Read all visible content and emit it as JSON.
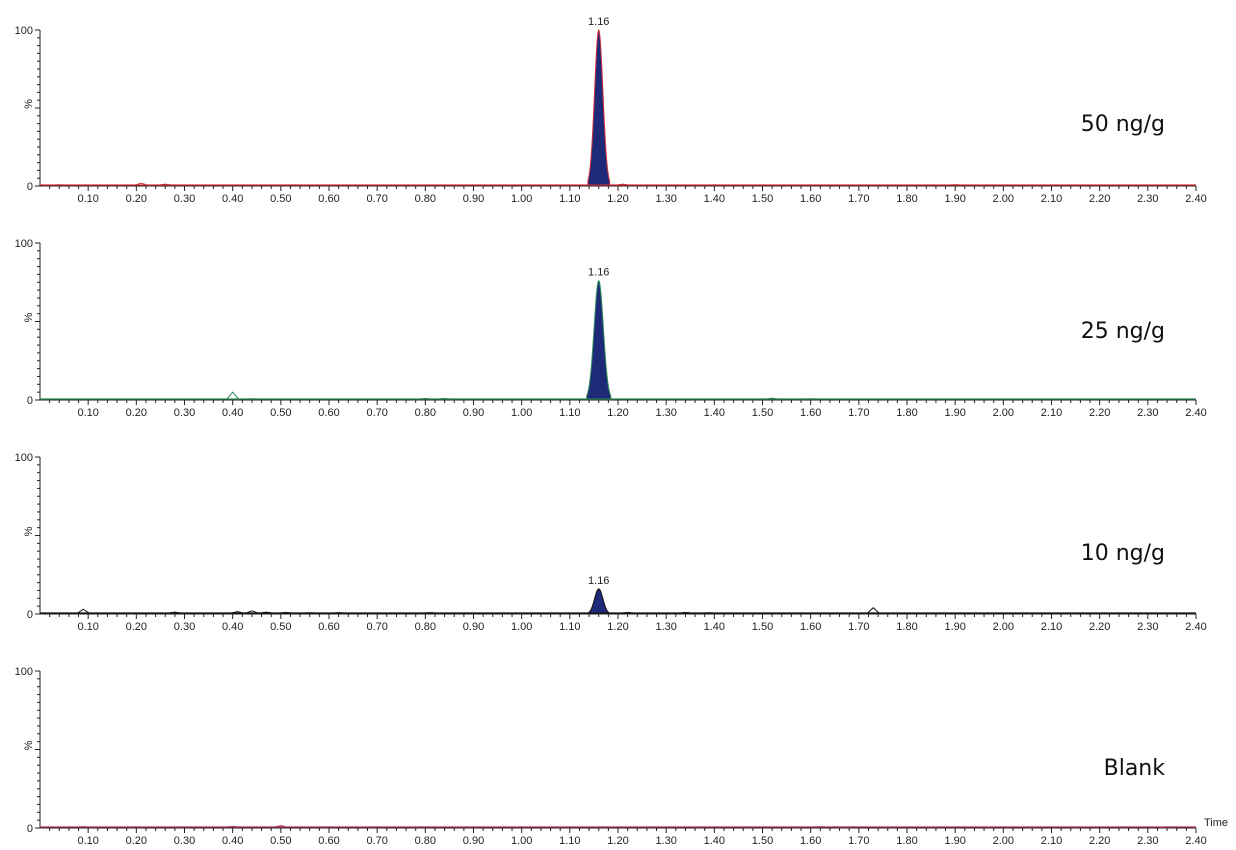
{
  "chart_data": [
    {
      "type": "line",
      "sample_label": "50 ng/g",
      "trace_color": "#d0303a",
      "fill_color": "#1e2a78",
      "x_range": [
        0,
        2.4
      ],
      "ylim": [
        0,
        100
      ],
      "y_ticks": [
        "0",
        "%",
        "100"
      ],
      "x_tick_labels": [
        "0.10",
        "0.20",
        "0.30",
        "0.40",
        "0.50",
        "0.60",
        "0.70",
        "0.80",
        "0.90",
        "1.00",
        "1.10",
        "1.20",
        "1.30",
        "1.40",
        "1.50",
        "1.60",
        "1.70",
        "1.80",
        "1.90",
        "2.00",
        "2.10",
        "2.20",
        "2.30",
        "2.40"
      ],
      "peak": {
        "rt": 1.16,
        "label": "1.16",
        "height": 100,
        "width": 0.045,
        "filled": true
      },
      "noise": [
        [
          0.04,
          0.8
        ],
        [
          0.21,
          1.8
        ],
        [
          0.26,
          1.2
        ],
        [
          0.45,
          0.6
        ],
        [
          0.53,
          0.7
        ],
        [
          1.1,
          0.6
        ],
        [
          1.21,
          1.2
        ],
        [
          1.4,
          0.7
        ],
        [
          1.9,
          0.9
        ]
      ]
    },
    {
      "type": "line",
      "sample_label": "25 ng/g",
      "trace_color": "#2e8b57",
      "fill_color": "#1e2a78",
      "x_range": [
        0,
        2.4
      ],
      "ylim": [
        0,
        100
      ],
      "y_ticks": [
        "0",
        "%",
        "100"
      ],
      "x_tick_labels": [
        "0.10",
        "0.20",
        "0.30",
        "0.40",
        "0.50",
        "0.60",
        "0.70",
        "0.80",
        "0.90",
        "1.00",
        "1.10",
        "1.20",
        "1.30",
        "1.40",
        "1.50",
        "1.60",
        "1.70",
        "1.80",
        "1.90",
        "2.00",
        "2.10",
        "2.20",
        "2.30",
        "2.40"
      ],
      "peak": {
        "rt": 1.16,
        "label": "1.16",
        "height": 76,
        "width": 0.05,
        "filled": true
      },
      "noise": [
        [
          0.4,
          5
        ],
        [
          0.44,
          0.8
        ],
        [
          0.8,
          1.0
        ],
        [
          0.84,
          1.0
        ],
        [
          1.27,
          0.6
        ],
        [
          1.52,
          1.2
        ],
        [
          1.6,
          0.8
        ]
      ]
    },
    {
      "type": "line",
      "sample_label": "10 ng/g",
      "trace_color": "#111111",
      "fill_color": "#1e2a78",
      "x_range": [
        0,
        2.4
      ],
      "ylim": [
        0,
        100
      ],
      "y_ticks": [
        "0",
        "%",
        "100"
      ],
      "x_tick_labels": [
        "0.10",
        "0.20",
        "0.30",
        "0.40",
        "0.50",
        "0.60",
        "0.70",
        "0.80",
        "0.90",
        "1.00",
        "1.10",
        "1.20",
        "1.30",
        "1.40",
        "1.50",
        "1.60",
        "1.70",
        "1.80",
        "1.90",
        "2.00",
        "2.10",
        "2.20",
        "2.30",
        "2.40"
      ],
      "peak": {
        "rt": 1.16,
        "label": "1.16",
        "height": 16,
        "width": 0.045,
        "filled": true
      },
      "noise": [
        [
          0.09,
          3
        ],
        [
          0.28,
          1.2
        ],
        [
          0.41,
          1.5
        ],
        [
          0.44,
          2
        ],
        [
          0.47,
          1.2
        ],
        [
          0.51,
          1.0
        ],
        [
          0.56,
          0.8
        ],
        [
          0.62,
          0.9
        ],
        [
          0.81,
          0.9
        ],
        [
          1.22,
          1.0
        ],
        [
          1.34,
          1.0
        ],
        [
          1.39,
          0.8
        ],
        [
          1.73,
          4
        ]
      ]
    },
    {
      "type": "line",
      "sample_label": "Blank",
      "trace_color": "#b03060",
      "fill_color": "#1e2a78",
      "x_range": [
        0,
        2.4
      ],
      "ylim": [
        0,
        100
      ],
      "y_ticks": [
        "0",
        "%",
        "100"
      ],
      "x_tick_labels": [
        "0.10",
        "0.20",
        "0.30",
        "0.40",
        "0.50",
        "0.60",
        "0.70",
        "0.80",
        "0.90",
        "1.00",
        "1.10",
        "1.20",
        "1.30",
        "1.40",
        "1.50",
        "1.60",
        "1.70",
        "1.80",
        "1.90",
        "2.00",
        "2.10",
        "2.20",
        "2.30",
        "2.40"
      ],
      "x_axis_title": "Time",
      "peak": null,
      "noise": [
        [
          0.09,
          0.8
        ],
        [
          0.4,
          1.0
        ],
        [
          0.5,
          1.5
        ],
        [
          0.93,
          0.6
        ],
        [
          1.62,
          0.8
        ],
        [
          1.65,
          0.7
        ],
        [
          1.69,
          0.7
        ],
        [
          1.87,
          0.6
        ],
        [
          2.33,
          0.5
        ]
      ]
    }
  ]
}
